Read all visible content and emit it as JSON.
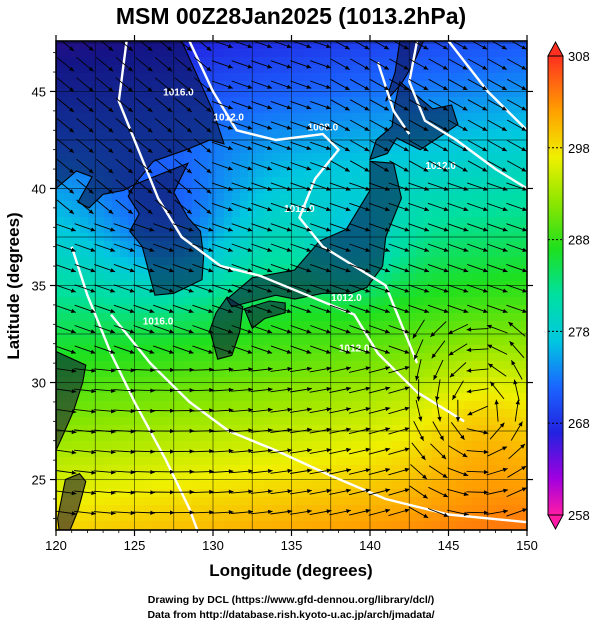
{
  "chart_data": {
    "type": "heatmap",
    "title": "MSM 00Z28Jan2025 (1013.2hPa)",
    "xlabel": "Longitude (degrees)",
    "ylabel": "Latitude (degrees)",
    "xlim": [
      120,
      150
    ],
    "ylim": [
      22.4,
      47.6
    ],
    "xticks": [
      "120",
      "125",
      "130",
      "135",
      "140",
      "145",
      "150"
    ],
    "yticks": [
      "25",
      "30",
      "35",
      "40",
      "45"
    ],
    "xtick_values": [
      120,
      125,
      130,
      135,
      140,
      145,
      150
    ],
    "ytick_values": [
      25,
      30,
      35,
      40,
      45
    ],
    "grid": true,
    "colorbar": {
      "ticks": [
        "308",
        "298",
        "288",
        "278",
        "268",
        "258"
      ],
      "tick_values": [
        308,
        298,
        288,
        278,
        268,
        258
      ],
      "range": [
        258,
        308
      ],
      "stops": [
        {
          "v": 258,
          "c": "#ff1aa6"
        },
        {
          "v": 262,
          "c": "#a000e0"
        },
        {
          "v": 267,
          "c": "#2222e0"
        },
        {
          "v": 272,
          "c": "#1a66ff"
        },
        {
          "v": 277,
          "c": "#00c8e0"
        },
        {
          "v": 282,
          "c": "#00e0a0"
        },
        {
          "v": 287,
          "c": "#1ee01e"
        },
        {
          "v": 292,
          "c": "#8ce600"
        },
        {
          "v": 297,
          "c": "#f0f000"
        },
        {
          "v": 302,
          "c": "#ffa000"
        },
        {
          "v": 308,
          "c": "#ff3020"
        }
      ]
    },
    "isobar_labels": [
      "1016.0",
      "1012.0",
      "1008.0",
      "1012.0",
      "1012.0",
      "1012.0",
      "1016.0",
      "1012.0"
    ],
    "isobar_color": "#ffffff",
    "vector_color": "#000000",
    "land_color": "#0a0a3c"
  },
  "credits": {
    "line1": "Drawing by DCL (https://www.gfd-dennou.org/library/dcl/)",
    "line2": "Data from http://database.rish.kyoto-u.ac.jp/arch/jmadata/"
  }
}
